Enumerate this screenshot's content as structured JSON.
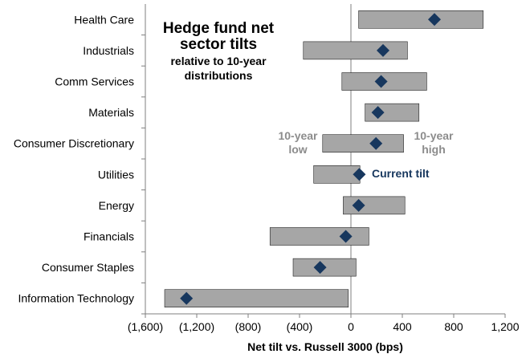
{
  "chart_data": {
    "type": "range-with-marker",
    "title_lines": [
      "Hedge fund net",
      "sector tilts",
      "relative to 10-year",
      "distributions"
    ],
    "xlabel": "Net tilt vs. Russell 3000 (bps)",
    "ylabel": "",
    "xlim": [
      -1600,
      1200
    ],
    "xticks": [
      -1600,
      -1200,
      -800,
      -400,
      0,
      400,
      800,
      1200
    ],
    "xtick_labels": [
      "(1,600)",
      "(1,200)",
      "(800)",
      "(400)",
      "0",
      "400",
      "800",
      "1,200"
    ],
    "categories": [
      "Health Care",
      "Industrials",
      "Comm Services",
      "Materials",
      "Consumer Discretionary",
      "Utilities",
      "Energy",
      "Financials",
      "Consumer Staples",
      "Information Technology"
    ],
    "series": [
      {
        "name": "10-year low",
        "values": [
          60,
          -370,
          -70,
          110,
          -220,
          -290,
          -60,
          -630,
          -450,
          -1450
        ]
      },
      {
        "name": "10-year high",
        "values": [
          1030,
          440,
          590,
          530,
          410,
          70,
          420,
          140,
          40,
          -20
        ]
      },
      {
        "name": "Current tilt",
        "values": [
          650,
          250,
          235,
          210,
          195,
          65,
          60,
          -40,
          -240,
          -1280
        ]
      }
    ],
    "annotations": {
      "low_label": [
        "10-year",
        "low"
      ],
      "high_label": [
        "10-year",
        "high"
      ],
      "current_label": "Current tilt"
    },
    "colors": {
      "range_bar": "#a6a6a6",
      "marker": "#17375e",
      "axis": "#7f7f7f",
      "annot_gray": "#8c8c8c"
    }
  }
}
